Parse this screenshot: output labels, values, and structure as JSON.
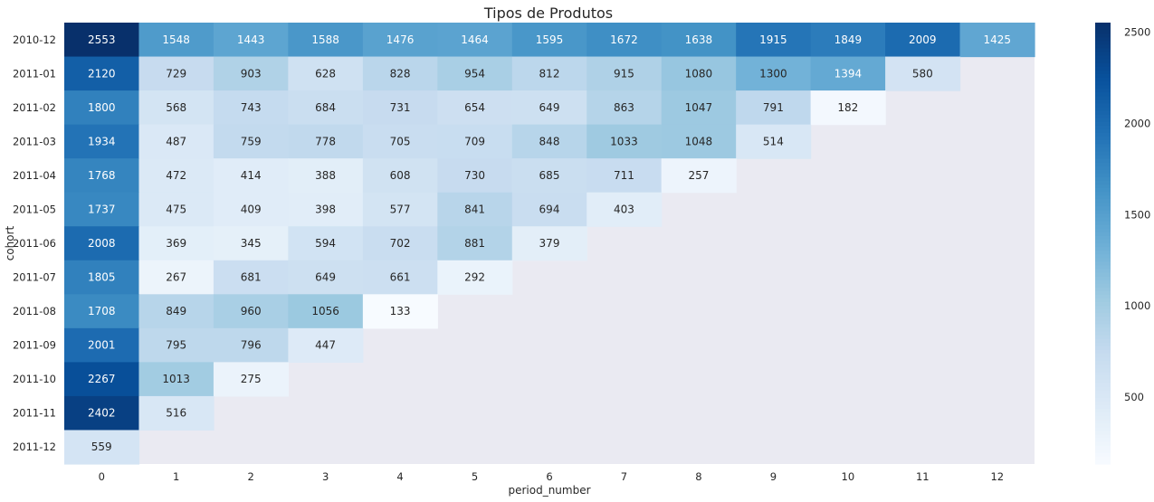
{
  "chart_data": {
    "type": "heatmap",
    "title": "Tipos de Produtos",
    "xlabel": "period_number",
    "ylabel": "cohort",
    "x": [
      "0",
      "1",
      "2",
      "3",
      "4",
      "5",
      "6",
      "7",
      "8",
      "9",
      "10",
      "11",
      "12"
    ],
    "y": [
      "2010-12",
      "2011-01",
      "2011-02",
      "2011-03",
      "2011-04",
      "2011-05",
      "2011-06",
      "2011-07",
      "2011-08",
      "2011-09",
      "2011-10",
      "2011-11",
      "2011-12"
    ],
    "values": [
      [
        2553,
        1548,
        1443,
        1588,
        1476,
        1464,
        1595,
        1672,
        1638,
        1915,
        1849,
        2009,
        1425
      ],
      [
        2120,
        729,
        903,
        628,
        828,
        954,
        812,
        915,
        1080,
        1300,
        1394,
        580,
        null
      ],
      [
        1800,
        568,
        743,
        684,
        731,
        654,
        649,
        863,
        1047,
        791,
        182,
        null,
        null
      ],
      [
        1934,
        487,
        759,
        778,
        705,
        709,
        848,
        1033,
        1048,
        514,
        null,
        null,
        null
      ],
      [
        1768,
        472,
        414,
        388,
        608,
        730,
        685,
        711,
        257,
        null,
        null,
        null,
        null
      ],
      [
        1737,
        475,
        409,
        398,
        577,
        841,
        694,
        403,
        null,
        null,
        null,
        null,
        null
      ],
      [
        2008,
        369,
        345,
        594,
        702,
        881,
        379,
        null,
        null,
        null,
        null,
        null,
        null
      ],
      [
        1805,
        267,
        681,
        649,
        661,
        292,
        null,
        null,
        null,
        null,
        null,
        null,
        null
      ],
      [
        1708,
        849,
        960,
        1056,
        133,
        null,
        null,
        null,
        null,
        null,
        null,
        null,
        null
      ],
      [
        2001,
        795,
        796,
        447,
        null,
        null,
        null,
        null,
        null,
        null,
        null,
        null,
        null
      ],
      [
        2267,
        1013,
        275,
        null,
        null,
        null,
        null,
        null,
        null,
        null,
        null,
        null,
        null
      ],
      [
        2402,
        516,
        null,
        null,
        null,
        null,
        null,
        null,
        null,
        null,
        null,
        null,
        null
      ],
      [
        559,
        null,
        null,
        null,
        null,
        null,
        null,
        null,
        null,
        null,
        null,
        null,
        null
      ]
    ],
    "colormap": "Blues",
    "vmin": 133,
    "vmax": 2553,
    "colorbar_ticks": [
      500,
      1000,
      1500,
      2000,
      2500
    ],
    "missing_color": "#eaeaf2",
    "colors": {
      "low": "#f7fbff",
      "high": "#08306b",
      "text_dark": "#262626",
      "text_light": "#ffffff"
    }
  }
}
